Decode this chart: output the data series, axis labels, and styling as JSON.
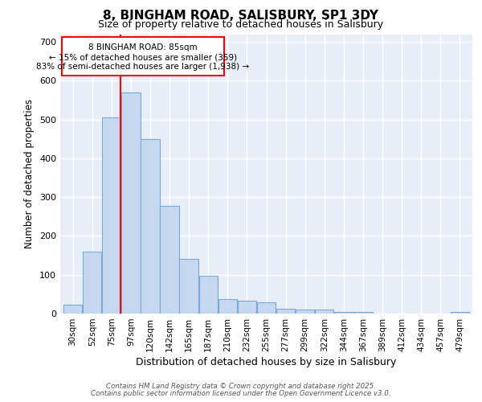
{
  "title": "8, BINGHAM ROAD, SALISBURY, SP1 3DY",
  "subtitle": "Size of property relative to detached houses in Salisbury",
  "xlabel": "Distribution of detached houses by size in Salisbury",
  "ylabel": "Number of detached properties",
  "categories": [
    "30sqm",
    "52sqm",
    "75sqm",
    "97sqm",
    "120sqm",
    "142sqm",
    "165sqm",
    "187sqm",
    "210sqm",
    "232sqm",
    "255sqm",
    "277sqm",
    "299sqm",
    "322sqm",
    "344sqm",
    "367sqm",
    "389sqm",
    "412sqm",
    "434sqm",
    "457sqm",
    "479sqm"
  ],
  "values": [
    22,
    160,
    505,
    570,
    450,
    278,
    140,
    98,
    37,
    33,
    30,
    13,
    10,
    10,
    5,
    5,
    0,
    0,
    0,
    0,
    5
  ],
  "bar_color": "#c5d8f0",
  "bar_edge_color": "#7aaad4",
  "bar_edge_width": 0.8,
  "annotation_line1": "8 BINGHAM ROAD: 85sqm",
  "annotation_line2": "← 15% of detached houses are smaller (359)",
  "annotation_line3": "83% of semi-detached houses are larger (1,938) →",
  "ylim": [
    0,
    720
  ],
  "yticks": [
    0,
    100,
    200,
    300,
    400,
    500,
    600,
    700
  ],
  "background_color": "#ffffff",
  "plot_bg_color": "#e8eef8",
  "footer_line1": "Contains HM Land Registry data © Crown copyright and database right 2025.",
  "footer_line2": "Contains public sector information licensed under the Open Government Licence v3.0."
}
